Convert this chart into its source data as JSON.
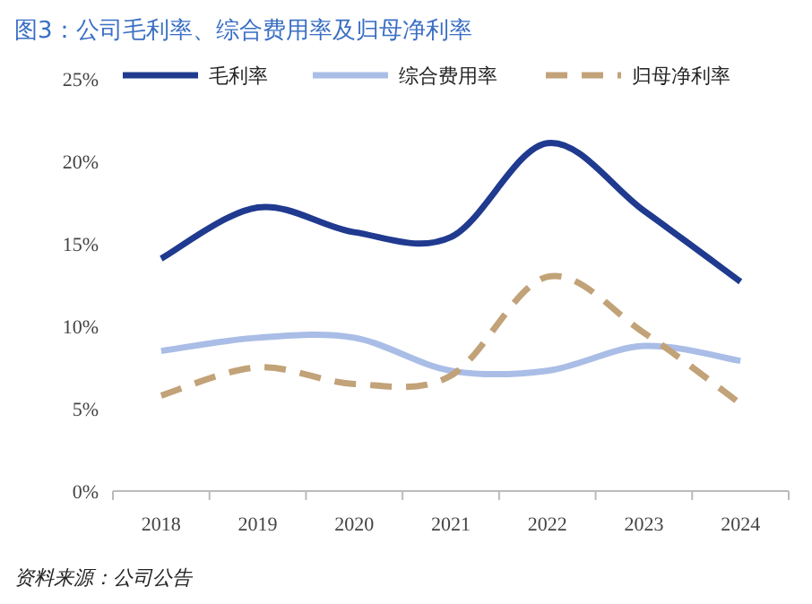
{
  "chart_data": {
    "type": "line",
    "title": "图3：公司毛利率、综合费用率及归母净利率",
    "categories": [
      "2018",
      "2019",
      "2020",
      "2021",
      "2022",
      "2023",
      "2024"
    ],
    "series": [
      {
        "name": "毛利率",
        "color": "#1f3a8f",
        "values": [
          14.1,
          17.2,
          15.7,
          15.4,
          21.1,
          17.0,
          12.7
        ],
        "line_style": "solid"
      },
      {
        "name": "综合费用率",
        "color": "#a9bde6",
        "values": [
          8.5,
          9.3,
          9.3,
          7.3,
          7.3,
          8.8,
          7.9
        ],
        "line_style": "solid"
      },
      {
        "name": "归母净利率",
        "color": "#c2a278",
        "values": [
          5.8,
          7.5,
          6.5,
          7.0,
          13.0,
          9.6,
          5.3
        ],
        "line_style": "dashed"
      }
    ],
    "ylim": [
      0,
      25
    ],
    "yticks": [
      {
        "value": 0,
        "label": "0%"
      },
      {
        "value": 5,
        "label": "5%"
      },
      {
        "value": 10,
        "label": "10%"
      },
      {
        "value": 15,
        "label": "15%"
      },
      {
        "value": 20,
        "label": "20%"
      },
      {
        "value": 25,
        "label": "25%"
      }
    ],
    "grid": false,
    "legend": "top",
    "marker": "none",
    "annotations": [
      "资料来源：公司公告"
    ]
  }
}
